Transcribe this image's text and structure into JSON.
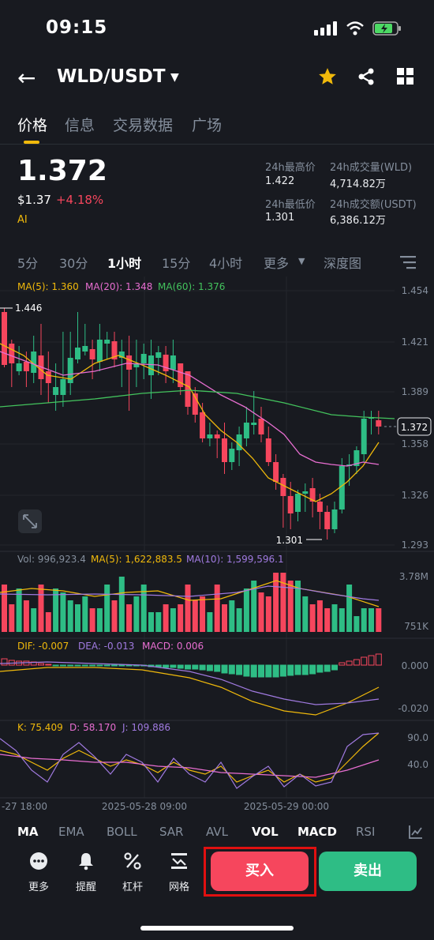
{
  "status_bar": {
    "time": "09:15"
  },
  "header": {
    "pair": "WLD/USDT"
  },
  "tabs": [
    {
      "label": "价格"
    },
    {
      "label": "信息"
    },
    {
      "label": "交易数据"
    },
    {
      "label": "广场"
    }
  ],
  "ticker": {
    "last_price": "1.372",
    "usd_price": "$1.37",
    "change": "+4.18%",
    "tag": "AI",
    "stats": {
      "high_label": "24h最高价",
      "high_value": "1.422",
      "low_label": "24h最低价",
      "low_value": "1.301",
      "vol_label": "24h成交量(WLD)",
      "vol_value": "4,714.82万",
      "amt_label": "24h成交额(USDT)",
      "amt_value": "6,386.12万"
    }
  },
  "timeframes": [
    "5分",
    "30分",
    "1小时",
    "15分",
    "4小时",
    "更多",
    "深度图"
  ],
  "selected_timeframe": "1小时",
  "main_chart": {
    "ma5": "MA(5): 1.360",
    "ma20": "MA(20): 1.348",
    "ma60": "MA(60): 1.376",
    "y_ticks": [
      "1.454",
      "1.421",
      "1.389",
      "1.358",
      "1.326",
      "1.293"
    ],
    "current_price": "1.372",
    "high_marker": "1.446",
    "low_marker": "1.301"
  },
  "volume_chart": {
    "vol": "Vol: 996,923.4",
    "ma5": "MA(5): 1,622,883.5",
    "ma10": "MA(10): 1,599,596.1",
    "y_ticks": [
      "3.78M",
      "751K"
    ]
  },
  "macd_chart": {
    "dif": "DIF: -0.007",
    "dea": "DEA: -0.013",
    "macd": "MACD: 0.006",
    "y_ticks": [
      "0.000",
      "-0.020"
    ]
  },
  "kdj_chart": {
    "k": "K: 75.409",
    "d": "D: 58.170",
    "j": "J: 109.886",
    "y_ticks": [
      "90.0",
      "40.0"
    ]
  },
  "x_axis": [
    "-27 18:00",
    "2025-05-28 09:00",
    "2025-05-29 00:00"
  ],
  "indicators": [
    "MA",
    "EMA",
    "BOLL",
    "SAR",
    "AVL",
    "VOL",
    "MACD",
    "RSI"
  ],
  "bottom_bar": {
    "more": "更多",
    "alert": "提醒",
    "leverage": "杠杆",
    "grid": "网格",
    "buy": "买入",
    "sell": "卖出"
  },
  "colors": {
    "up": "#2ebd85",
    "down": "#f6465d",
    "accent": "#f0b90b",
    "ma5": "#f0b90b",
    "ma20": "#e86ed1",
    "ma60": "#43c35d"
  }
}
